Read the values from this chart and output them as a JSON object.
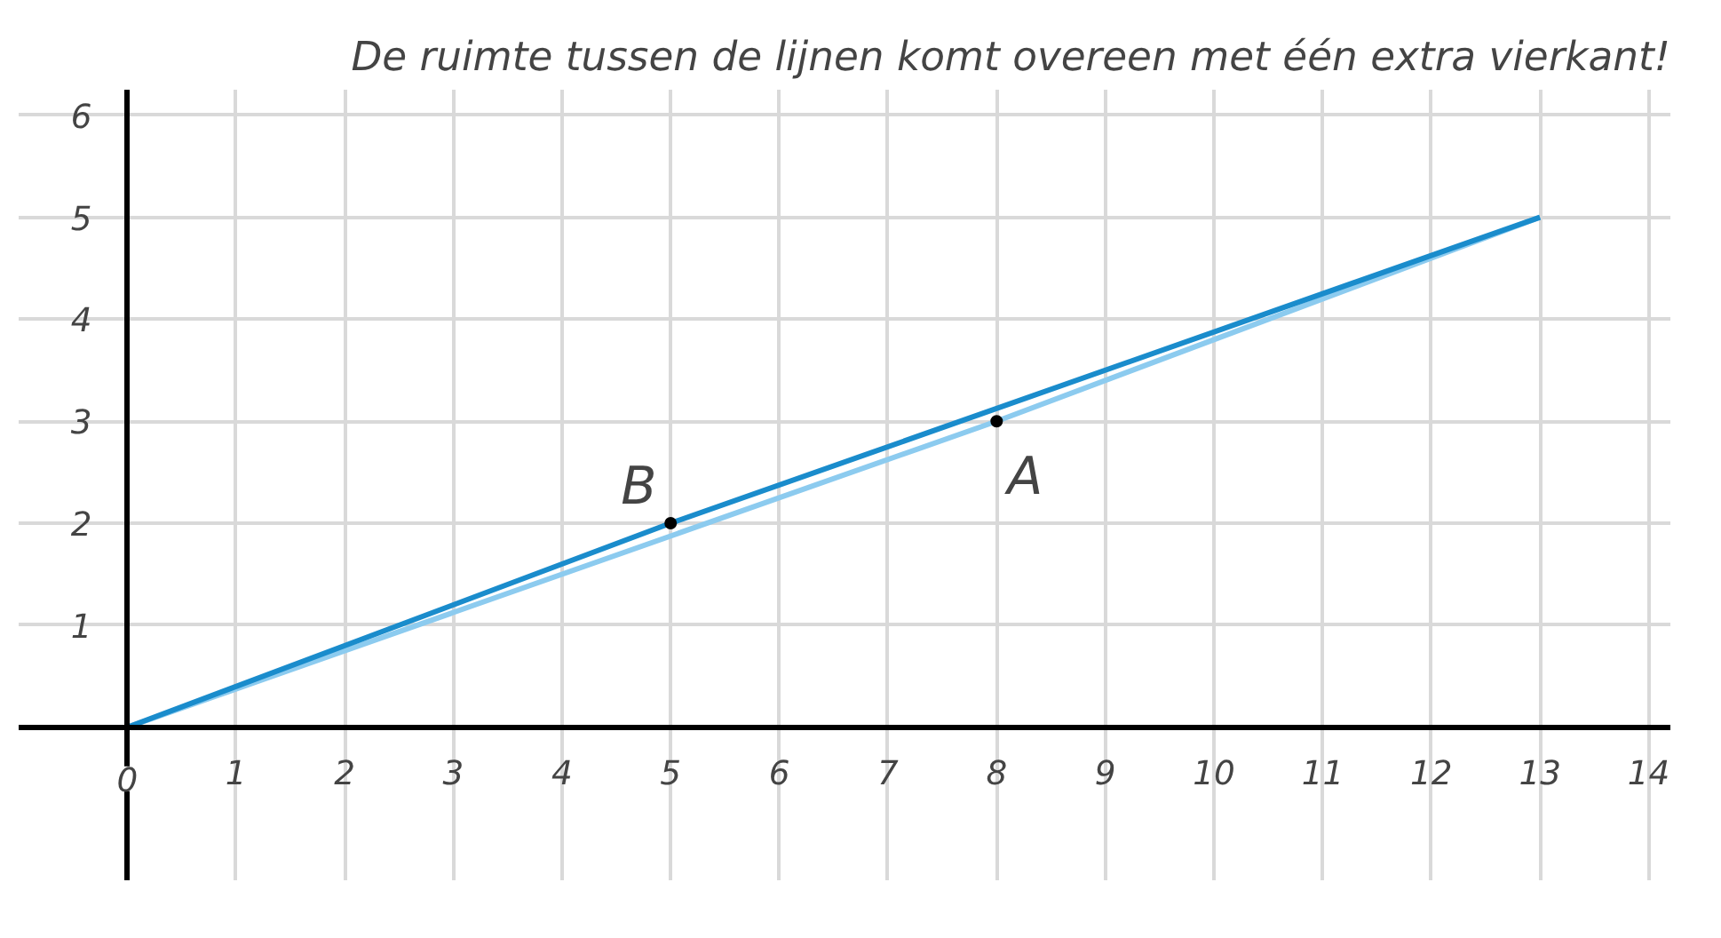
{
  "chart_data": {
    "type": "line",
    "title": "De ruimte tussen de lijnen komt overeen met één extra vierkant!",
    "series": [
      {
        "x": [
          0,
          5,
          13
        ],
        "values": [
          0,
          2,
          5
        ],
        "color": "#1a8ccc"
      },
      {
        "x": [
          0,
          8,
          13
        ],
        "values": [
          0,
          3,
          5
        ],
        "color": "#8ccbef"
      }
    ],
    "annotations": [
      {
        "text": "B",
        "x": 5,
        "y": 2
      },
      {
        "text": "A",
        "x": 8,
        "y": 3
      }
    ],
    "xlim": [
      -1,
      14.2
    ],
    "ylim": [
      -1.5,
      6.25
    ],
    "xticks": [
      0,
      1,
      2,
      3,
      4,
      5,
      6,
      7,
      8,
      9,
      10,
      11,
      12,
      13,
      14
    ],
    "yticks": [
      1,
      2,
      3,
      4,
      5,
      6
    ],
    "grid": true,
    "marker": "none",
    "line_style": "solid"
  }
}
